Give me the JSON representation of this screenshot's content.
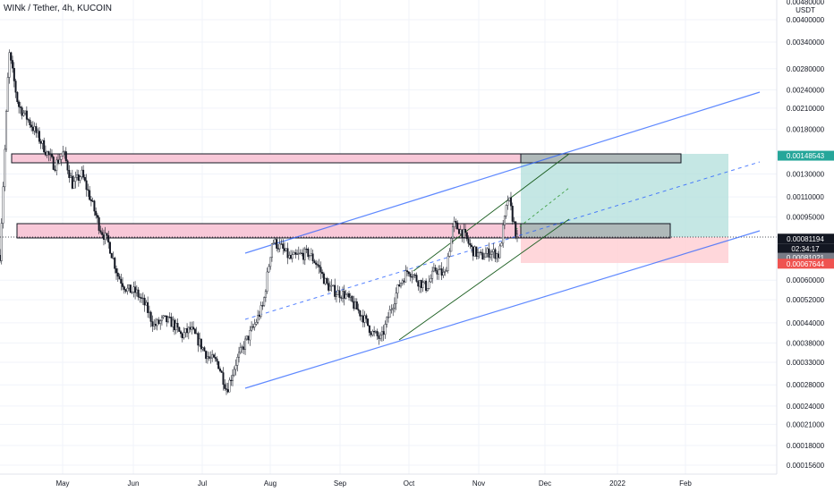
{
  "chart_data": {
    "type": "candlestick",
    "title": "WINk / Tether, 4h, KUCOIN",
    "currency": "USDT",
    "y_scale": "log",
    "ylim": [
      0.000138,
      0.0048
    ],
    "y_ticks": [
      "0.00400000",
      "0.00340000",
      "0.00280000",
      "0.00240000",
      "0.00210000",
      "0.00180000",
      "0.00130000",
      "0.00110000",
      "0.00095000",
      "0.00060000",
      "0.00052000",
      "0.00044000",
      "0.00038000",
      "0.00033000",
      "0.00028000",
      "0.00024000",
      "0.00021000",
      "0.00018000",
      "0.00015600"
    ],
    "y_top_label": "0.00480000",
    "x_ticks": [
      "May",
      "Jun",
      "Jul",
      "Aug",
      "Sep",
      "Oct",
      "Nov",
      "Dec",
      "2022",
      "Feb"
    ],
    "price_labels": [
      {
        "value": "0.00148543",
        "color": "#26a69a",
        "role": "take-profit"
      },
      {
        "value": "0.00081194",
        "color": "#131722",
        "role": "last-price"
      },
      {
        "value": "02:34:17",
        "color": "#131722",
        "role": "countdown"
      },
      {
        "value": "0.00081021",
        "color": "#787b86",
        "role": "entry"
      },
      {
        "value": "0.00067644",
        "color": "#ef5350",
        "role": "stop-loss"
      }
    ],
    "price_series": [
      [
        0.00072,
        0.00315
      ],
      [
        0.00215,
        0.00195
      ],
      [
        0.00175,
        0.00155
      ],
      [
        0.00138,
        0.00152
      ],
      [
        0.0012,
        0.0013
      ],
      [
        0.00108,
        0.00088
      ],
      [
        0.00078,
        0.00062
      ],
      [
        0.00056,
        0.00055
      ],
      [
        0.0005,
        0.00043
      ],
      [
        0.00045,
        0.00044
      ],
      [
        0.0004,
        0.00042
      ],
      [
        0.00038,
        0.00034
      ],
      [
        0.00033,
        0.00027
      ],
      [
        0.00033,
        0.00038
      ],
      [
        0.00043,
        0.0005
      ],
      [
        0.0008,
        0.00076
      ],
      [
        0.0007,
        0.00072
      ],
      [
        0.00073,
        0.00067
      ],
      [
        0.00058,
        0.00055
      ],
      [
        0.00054,
        0.0005
      ],
      [
        0.00046,
        0.00041
      ],
      [
        0.00039,
        0.00048
      ],
      [
        0.00058,
        0.00065
      ],
      [
        0.0006,
        0.00057
      ],
      [
        0.00065,
        0.00062
      ],
      [
        0.0009,
        0.00085
      ],
      [
        0.00075,
        0.00071
      ],
      [
        0.00074,
        0.00072
      ],
      [
        0.0011,
        0.00081
      ]
    ]
  }
}
